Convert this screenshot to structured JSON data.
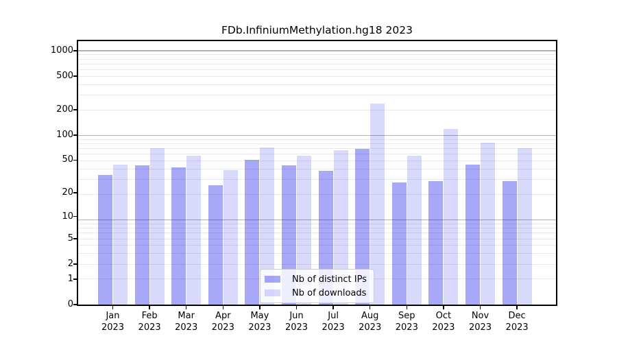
{
  "chart_data": {
    "type": "bar",
    "title": "FDb.InfiniumMethylation.hg18 2023",
    "categories": [
      "Jan",
      "Feb",
      "Mar",
      "Apr",
      "May",
      "Jun",
      "Jul",
      "Aug",
      "Sep",
      "Oct",
      "Nov",
      "Dec"
    ],
    "category_sub_label": "2023",
    "series": [
      {
        "name": "Nb of distinct IPs",
        "color": "rgba(0,0,235,0.34)",
        "values": [
          33,
          43,
          41,
          25,
          50,
          43,
          37,
          68,
          27,
          28,
          44,
          28
        ]
      },
      {
        "name": "Nb of downloads",
        "color": "rgba(0,0,235,0.15)",
        "values": [
          44,
          70,
          57,
          38,
          71,
          57,
          66,
          237,
          57,
          118,
          81,
          70
        ]
      }
    ],
    "xlabel": "",
    "ylabel": "",
    "y_axis": {
      "scale": "log10(value+1)",
      "tick_values": [
        1000,
        500,
        200,
        100,
        50,
        20,
        10,
        5,
        2,
        1,
        0
      ],
      "tick_labels": [
        "1000",
        "500",
        "200",
        "100",
        "50",
        "20",
        "10",
        "5",
        "2",
        "1",
        "0"
      ],
      "ylim": [
        0,
        1300
      ]
    },
    "grid": {
      "major_gridlines_at_value_plus_1": [
        10,
        100,
        1000
      ],
      "minor_gridline_mantissas": [
        2,
        3,
        4,
        5,
        6,
        7,
        8,
        9
      ],
      "major_color": "#b0b0b0",
      "minor_color": "#e8e8e8"
    },
    "legend": {
      "position": "lower center",
      "entries": [
        "Nb of distinct IPs",
        "Nb of downloads"
      ]
    },
    "colors": {
      "background": "#ffffff",
      "axis": "#000000",
      "text": "#000000"
    }
  }
}
